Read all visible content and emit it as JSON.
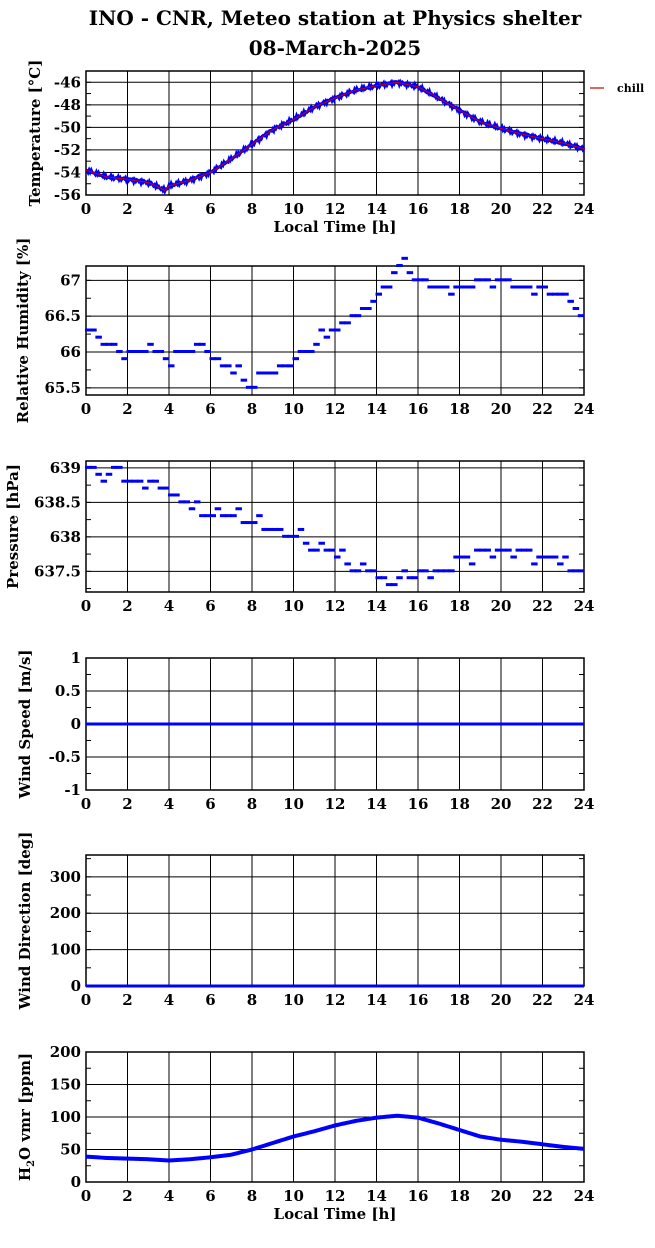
{
  "page": {
    "title_line1": "INO - CNR, Meteo station at Physics shelter",
    "title_line2": "08-March-2025"
  },
  "colors": {
    "data": "#0000ff",
    "chill": "#cc0000",
    "grid": "#000000",
    "background": "#ffffff"
  },
  "chart_data": [
    {
      "type": "scatter",
      "ylabel": "Temperature [°C]",
      "xlabel": "Local Time [h]",
      "xlim": [
        0,
        24
      ],
      "ylim": [
        -56,
        -45
      ],
      "yticks": [
        -56,
        -54,
        -52,
        -50,
        -48,
        -46
      ],
      "xticks": [
        0,
        2,
        4,
        6,
        8,
        10,
        12,
        14,
        16,
        18,
        20,
        22,
        24
      ],
      "grid": true,
      "legend": "top-right, outside plot",
      "legend_entries": [
        "chill"
      ],
      "series": [
        {
          "name": "temperature",
          "x": [
            0,
            1,
            2,
            3,
            3.5,
            3.8,
            4,
            5,
            6,
            7,
            8,
            9,
            10,
            11,
            12,
            13,
            14,
            15,
            16,
            17,
            18,
            19,
            20,
            21,
            22,
            23,
            24
          ],
          "y": [
            -53.8,
            -54.4,
            -54.6,
            -54.9,
            -55.3,
            -55.6,
            -55.2,
            -54.7,
            -54,
            -52.8,
            -51.5,
            -50.2,
            -49.3,
            -48.2,
            -47.4,
            -46.7,
            -46.3,
            -46,
            -46.4,
            -47.4,
            -48.5,
            -49.5,
            -50.1,
            -50.6,
            -51,
            -51.4,
            -51.9
          ]
        },
        {
          "name": "chill",
          "x": [
            0,
            1,
            2,
            3,
            3.5,
            3.8,
            4,
            5,
            6,
            7,
            8,
            9,
            10,
            11,
            12,
            13,
            14,
            15,
            16,
            17,
            18,
            19,
            20,
            21,
            22,
            23,
            24
          ],
          "y": [
            -53.8,
            -54.4,
            -54.6,
            -54.9,
            -55.3,
            -55.6,
            -55.2,
            -54.7,
            -54,
            -52.8,
            -51.5,
            -50.2,
            -49.3,
            -48.2,
            -47.4,
            -46.7,
            -46.3,
            -46,
            -46.4,
            -47.4,
            -48.5,
            -49.5,
            -50.1,
            -50.6,
            -51,
            -51.4,
            -51.9
          ]
        }
      ]
    },
    {
      "type": "scatter",
      "ylabel": "Relative Humidity [%]",
      "xlim": [
        0,
        24
      ],
      "ylim": [
        65.4,
        67.2
      ],
      "yticks": [
        65.5,
        66,
        66.5,
        67
      ],
      "xticks": [
        0,
        2,
        4,
        6,
        8,
        10,
        12,
        14,
        16,
        18,
        20,
        22,
        24
      ],
      "grid": true,
      "series": [
        {
          "name": "humidity",
          "x": [
            0,
            0.5,
            1,
            2,
            3,
            3.5,
            4,
            4.5,
            5,
            5.5,
            6,
            6.5,
            7,
            7.5,
            8,
            8.5,
            9,
            9.5,
            10,
            10.5,
            11,
            11.5,
            12,
            12.5,
            13,
            13.5,
            14,
            14.5,
            15,
            15.5,
            16,
            17,
            18,
            19,
            20,
            21,
            22,
            22.5,
            23,
            23.5,
            24
          ],
          "y": [
            66.3,
            66.2,
            66.1,
            66,
            66.1,
            66,
            65.8,
            66,
            66,
            66.1,
            65.9,
            65.8,
            65.7,
            65.6,
            65.5,
            65.7,
            65.7,
            65.8,
            65.9,
            66,
            66.1,
            66.2,
            66.3,
            66.4,
            66.5,
            66.6,
            66.8,
            66.9,
            67.2,
            67.1,
            67,
            66.9,
            66.9,
            67,
            67,
            66.9,
            66.9,
            66.8,
            66.7,
            66.6,
            66.5
          ]
        }
      ]
    },
    {
      "type": "scatter",
      "ylabel": "Pressure [hPa]",
      "xlim": [
        0,
        24
      ],
      "ylim": [
        637.2,
        639.1
      ],
      "yticks": [
        637.5,
        638,
        638.5,
        639
      ],
      "xticks": [
        0,
        2,
        4,
        6,
        8,
        10,
        12,
        14,
        16,
        18,
        20,
        22,
        24
      ],
      "grid": true,
      "series": [
        {
          "name": "pressure",
          "x": [
            0,
            0.5,
            1,
            1.5,
            2,
            3,
            3.5,
            4,
            4.5,
            5,
            6,
            7,
            7.5,
            8,
            8.5,
            9,
            9.5,
            10,
            10.5,
            11,
            11.5,
            12,
            12.5,
            13,
            13.5,
            14,
            14.5,
            15,
            15.5,
            16,
            16.5,
            17,
            17.5,
            18,
            19,
            20,
            21,
            22,
            23,
            23.5,
            24
          ],
          "y": [
            639,
            638.9,
            638.9,
            639,
            638.8,
            638.8,
            638.7,
            638.6,
            638.5,
            638.4,
            638.3,
            638.3,
            638.2,
            638.2,
            638.1,
            638.1,
            638,
            638,
            637.9,
            637.8,
            637.8,
            637.7,
            637.6,
            637.5,
            637.5,
            637.4,
            637.3,
            637.4,
            637.4,
            637.5,
            637.5,
            637.5,
            637.6,
            637.7,
            637.8,
            637.8,
            637.8,
            637.7,
            637.6,
            637.5,
            637.5
          ]
        }
      ]
    },
    {
      "type": "line",
      "ylabel": "Wind Speed [m/s]",
      "xlim": [
        0,
        24
      ],
      "ylim": [
        -1,
        1
      ],
      "yticks": [
        -1,
        -0.5,
        0,
        0.5,
        1
      ],
      "xticks": [
        0,
        2,
        4,
        6,
        8,
        10,
        12,
        14,
        16,
        18,
        20,
        22,
        24
      ],
      "grid": true,
      "series": [
        {
          "name": "wind speed",
          "x": [
            0,
            24
          ],
          "y": [
            0,
            0
          ]
        }
      ]
    },
    {
      "type": "line",
      "ylabel": "Wind Direction [deg]",
      "xlim": [
        0,
        24
      ],
      "ylim": [
        0,
        360
      ],
      "yticks": [
        0,
        100,
        200,
        300
      ],
      "xticks": [
        0,
        2,
        4,
        6,
        8,
        10,
        12,
        14,
        16,
        18,
        20,
        22,
        24
      ],
      "grid": true,
      "series": [
        {
          "name": "wind direction",
          "x": [
            0,
            24
          ],
          "y": [
            0,
            0
          ]
        }
      ]
    },
    {
      "type": "line",
      "ylabel": "H2O vmr [ppm]",
      "xlabel": "Local Time [h]",
      "xlim": [
        0,
        24
      ],
      "ylim": [
        0,
        200
      ],
      "yticks": [
        0,
        50,
        100,
        150,
        200
      ],
      "xticks": [
        0,
        2,
        4,
        6,
        8,
        10,
        12,
        14,
        16,
        18,
        20,
        22,
        24
      ],
      "grid": true,
      "series": [
        {
          "name": "h2o",
          "x": [
            0,
            1,
            2,
            3,
            4,
            5,
            6,
            7,
            8,
            9,
            10,
            11,
            12,
            13,
            14,
            15,
            16,
            17,
            18,
            19,
            20,
            21,
            22,
            23,
            24
          ],
          "y": [
            39,
            37,
            36,
            35,
            33,
            35,
            38,
            42,
            50,
            60,
            70,
            78,
            87,
            94,
            99,
            102,
            99,
            90,
            80,
            70,
            65,
            62,
            58,
            54,
            51
          ]
        }
      ]
    }
  ]
}
